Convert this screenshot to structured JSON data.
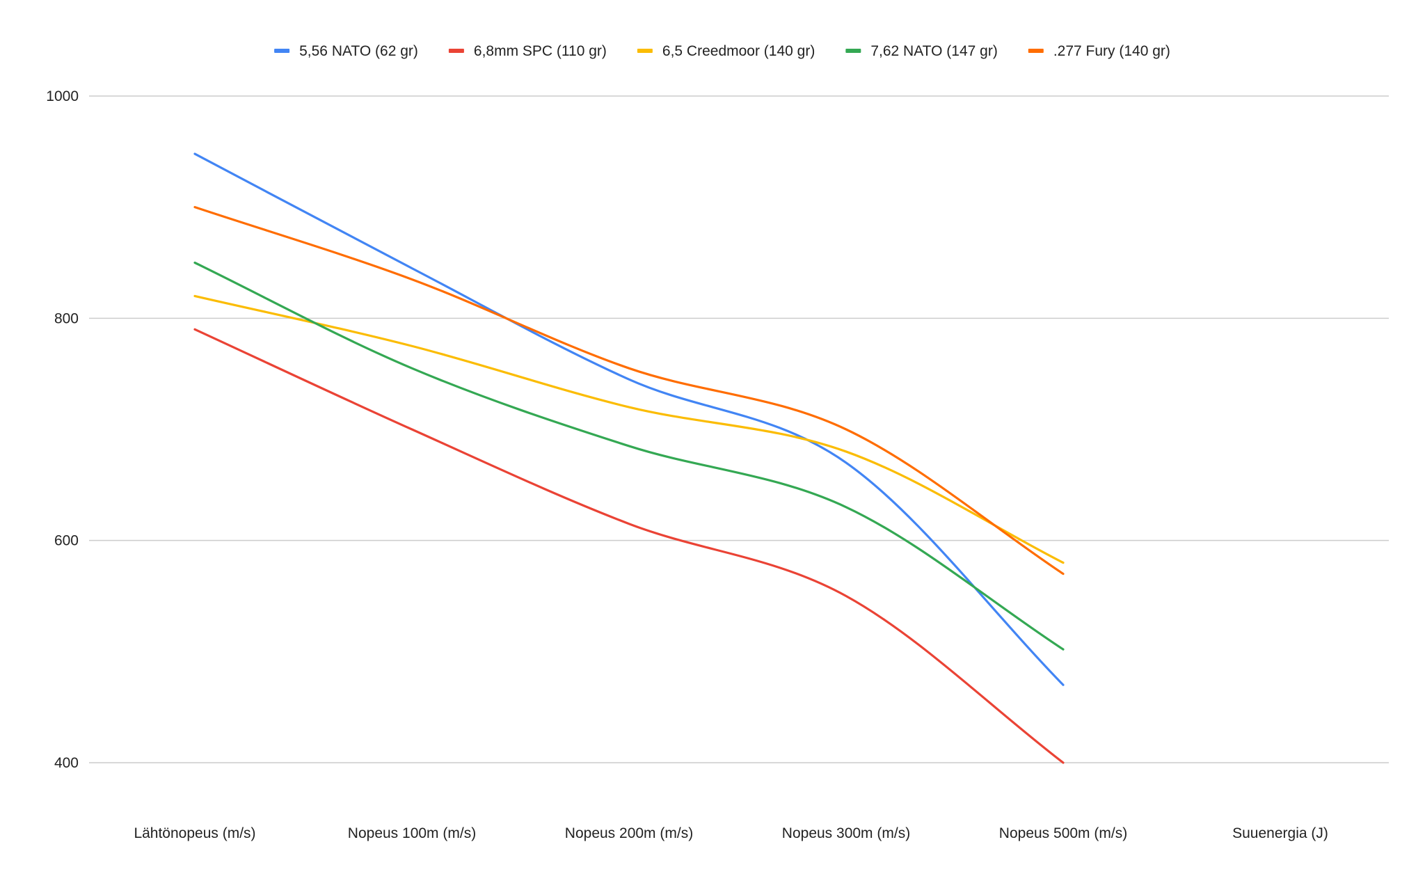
{
  "chart_data": {
    "type": "line",
    "categories": [
      "Lähtönopeus (m/s)",
      "Nopeus 100m (m/s)",
      "Nopeus 200m (m/s)",
      "Nopeus 300m (m/s)",
      "Nopeus 500m (m/s)",
      "Suuenergia (J)"
    ],
    "series": [
      {
        "name": "5,56 NATO (62 gr)",
        "color": "#4285f4",
        "values": [
          948,
          845,
          745,
          670,
          470,
          null
        ]
      },
      {
        "name": "6,8mm SPC (110 gr)",
        "color": "#ea4335",
        "values": [
          790,
          700,
          615,
          550,
          400,
          null
        ]
      },
      {
        "name": "6,5 Creedmoor (140 gr)",
        "color": "#fbbc04",
        "values": [
          820,
          775,
          720,
          680,
          580,
          null
        ]
      },
      {
        "name": "7,62 NATO (147 gr)",
        "color": "#34a853",
        "values": [
          850,
          755,
          685,
          630,
          502,
          null
        ]
      },
      {
        "name": ".277 Fury (140 gr)",
        "color": "#ff6d01",
        "values": [
          900,
          835,
          755,
          700,
          570,
          null
        ]
      }
    ],
    "yticks": [
      400,
      600,
      800,
      1000
    ],
    "ylim": [
      400,
      1000
    ],
    "title": "",
    "xlabel": "",
    "ylabel": "",
    "grid": true,
    "legend_position": "top-center"
  }
}
